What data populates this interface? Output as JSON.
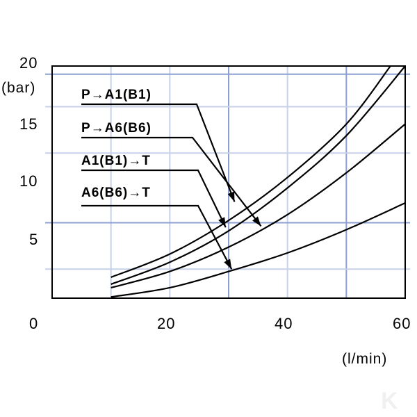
{
  "chart_data": {
    "type": "line",
    "title": "",
    "xlabel": "(l/min)",
    "ylabel": "(bar)",
    "xlim": [
      0,
      60
    ],
    "ylim": [
      0,
      20
    ],
    "x_ticks": [
      "0",
      "20",
      "40",
      "60"
    ],
    "y_ticks": [
      "5",
      "10",
      "15",
      "20"
    ],
    "grid": true,
    "series": [
      {
        "name": "P→A1(B1)",
        "x": [
          10,
          20,
          30,
          40,
          50,
          57.5
        ],
        "y": [
          1.8,
          3.8,
          6.7,
          10.4,
          15.0,
          20.0
        ]
      },
      {
        "name": "P→A6(B6)",
        "x": [
          10,
          20,
          30,
          40,
          50,
          60
        ],
        "y": [
          1.2,
          3.1,
          5.8,
          9.5,
          14.0,
          20.0
        ]
      },
      {
        "name": "A1(B1)→T",
        "x": [
          10,
          20,
          30,
          40,
          50,
          60
        ],
        "y": [
          0.9,
          2.3,
          4.4,
          7.2,
          10.8,
          15.0
        ]
      },
      {
        "name": "A6(B6)→T",
        "x": [
          10,
          20,
          30,
          40,
          50,
          60
        ],
        "y": [
          0.1,
          0.9,
          2.3,
          3.9,
          5.9,
          8.2
        ]
      }
    ],
    "annotations": [
      {
        "text": "P→A1(B1)",
        "series": 0,
        "x": 31,
        "y": 8.3
      },
      {
        "text": "P→A6(B6)",
        "series": 1,
        "x": 35.5,
        "y": 6.2
      },
      {
        "text": "A1(B1)→T",
        "series": 2,
        "x": 29.5,
        "y": 6.1
      },
      {
        "text": "A6(B6)→T",
        "series": 3,
        "x": 30.5,
        "y": 2.5
      }
    ]
  },
  "watermark": "K"
}
